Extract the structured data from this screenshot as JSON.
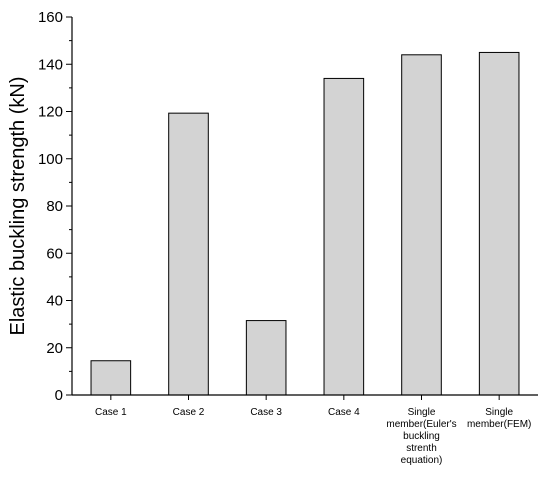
{
  "chart_data": {
    "type": "bar",
    "title": "",
    "xlabel": "",
    "ylabel": "Elastic buckling strength (kN)",
    "categories": [
      [
        "Case 1"
      ],
      [
        "Case 2"
      ],
      [
        "Case 3"
      ],
      [
        "Case 4"
      ],
      [
        "Single",
        "member(Euler's",
        "buckling",
        "strenth",
        "equation)"
      ],
      [
        "Single",
        "member(FEM)"
      ]
    ],
    "values": [
      14.5,
      119.3,
      31.5,
      134,
      144,
      145
    ],
    "ylim": [
      0,
      160
    ],
    "yticks": [
      0,
      20,
      40,
      60,
      80,
      100,
      120,
      140,
      160
    ],
    "bar_color": "#d3d3d3",
    "grid": false,
    "legend": "none"
  }
}
